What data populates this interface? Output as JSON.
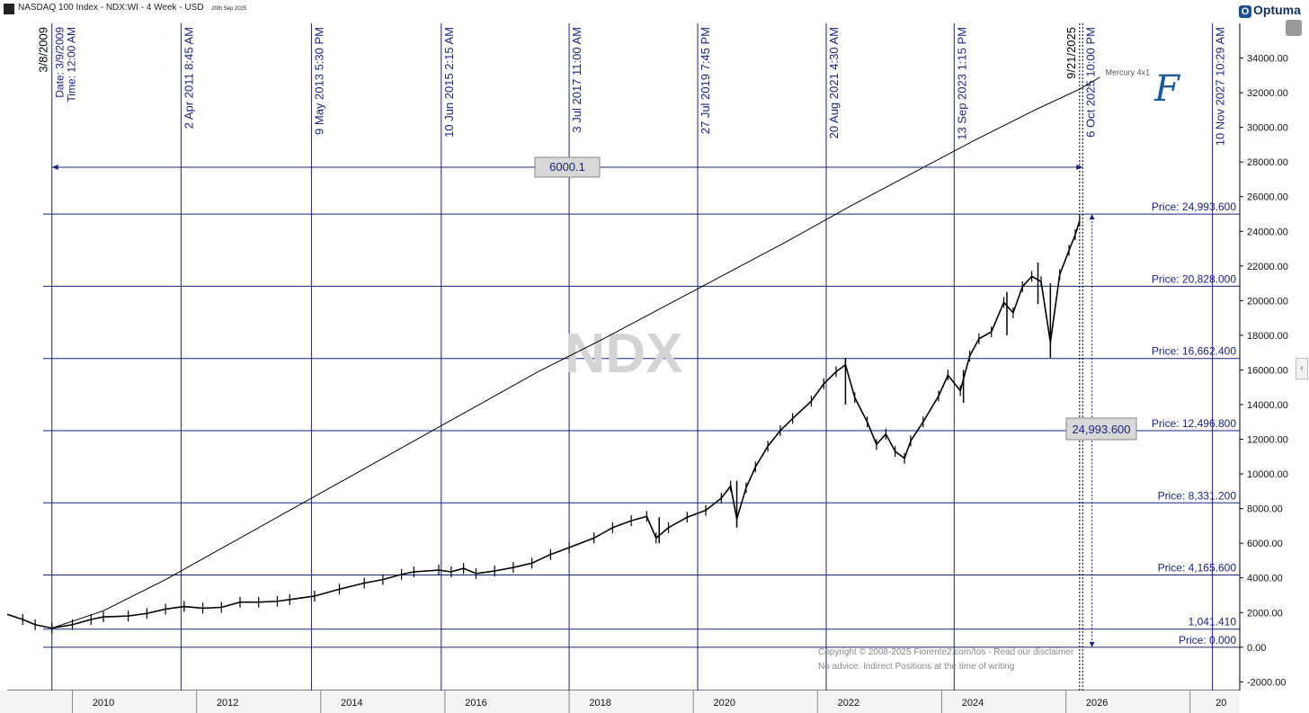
{
  "header": {
    "title": "NASDAQ 100 Index - NDX:WI - 4 Week - USD",
    "date": "20th Sep 2025"
  },
  "logo": {
    "text": "Optuma",
    "mark": "O"
  },
  "footer": {
    "line1": "Copyright © 2008-2025 Fiorente2.com/tos - Read our disclaimer",
    "line2": "No advice. Indirect Positions at the time of writing"
  },
  "chart_data": {
    "type": "line",
    "watermark": "NDX",
    "signature": "F",
    "x_ticks": [
      "2010",
      "2012",
      "2014",
      "2016",
      "2018",
      "2020",
      "2022",
      "2024",
      "2026",
      "20"
    ],
    "xlim": [
      2008.45,
      2028.3
    ],
    "ylim": [
      -2500,
      36000
    ],
    "y_ticks": [
      -2000,
      0,
      2000,
      4000,
      6000,
      8000,
      10000,
      12000,
      14000,
      16000,
      18000,
      20000,
      22000,
      24000,
      26000,
      28000,
      30000,
      32000,
      34000
    ],
    "y_tick_labels": [
      "-2000.00",
      "0.00",
      "2000.00",
      "4000.00",
      "6000.00",
      "8000.00",
      "10000.00",
      "12000.00",
      "14000.00",
      "16000.00",
      "18000.00",
      "20000.00",
      "22000.00",
      "24000.00",
      "26000.00",
      "28000.00",
      "30000.00",
      "32000.00",
      "34000.00"
    ],
    "time_lines": [
      {
        "x": 2009.17,
        "label": "3/8/2009"
      },
      {
        "x": 2011.25,
        "label": "2 Apr 2011 8:45 AM"
      },
      {
        "x": 2013.35,
        "label": "9 May 2013 5:30 PM"
      },
      {
        "x": 2015.44,
        "label": "10 Jun 2015 2:15 AM"
      },
      {
        "x": 2017.5,
        "label": "3 Jul 2017 11:00 AM"
      },
      {
        "x": 2019.57,
        "label": "27 Jul 2019 7:45 PM"
      },
      {
        "x": 2021.64,
        "label": "20 Aug 2021 4:30 AM"
      },
      {
        "x": 2023.7,
        "label": "13 Sep 2023 1:15 PM"
      },
      {
        "x": 2025.72,
        "label": "9/21/2025"
      },
      {
        "x": 2025.77,
        "label": "6 Oct 2025 10:00 PM"
      },
      {
        "x": 2027.86,
        "label": "10 Nov 2027 10:29 AM"
      }
    ],
    "start_labels": [
      "Date: 3/9/2009",
      "Time: 12:00 AM"
    ],
    "price_levels": [
      {
        "y": 24993.6,
        "label": "Price: 24,993.600"
      },
      {
        "y": 20828.0,
        "label": "Price: 20,828.000"
      },
      {
        "y": 16662.4,
        "label": "Price: 16,662.400"
      },
      {
        "y": 12496.8,
        "label": "Price: 12,496.800"
      },
      {
        "y": 8331.2,
        "label": "Price: 8,331.200"
      },
      {
        "y": 4165.6,
        "label": "Price: 4,165.600"
      },
      {
        "y": 1041.41,
        "label": "1,041.410"
      },
      {
        "y": 0,
        "label": "Price: 0.000"
      }
    ],
    "span_label": "6000.1",
    "span_y": 27700,
    "range_label": "24,993.600",
    "range_label_y": 12600,
    "mercury_label": "Mercury 4x1",
    "mercury_line": [
      [
        2009.17,
        1100
      ],
      [
        2010,
        2100
      ],
      [
        2011,
        3900
      ],
      [
        2012,
        5900
      ],
      [
        2013,
        7900
      ],
      [
        2014,
        9900
      ],
      [
        2015,
        11900
      ],
      [
        2016,
        13900
      ],
      [
        2017,
        15900
      ],
      [
        2018,
        17700
      ],
      [
        2019,
        19600
      ],
      [
        2020,
        21500
      ],
      [
        2021,
        23400
      ],
      [
        2022,
        25400
      ],
      [
        2023,
        27300
      ],
      [
        2024,
        29200
      ],
      [
        2025,
        31000
      ],
      [
        2025.72,
        32200
      ],
      [
        2026.05,
        32900
      ]
    ],
    "price_line": [
      [
        2008.45,
        1900
      ],
      [
        2008.7,
        1600
      ],
      [
        2008.9,
        1300
      ],
      [
        2009.17,
        1100
      ],
      [
        2009.5,
        1300
      ],
      [
        2009.8,
        1600
      ],
      [
        2010,
        1750
      ],
      [
        2010.4,
        1800
      ],
      [
        2010.7,
        1950
      ],
      [
        2011,
        2200
      ],
      [
        2011.3,
        2350
      ],
      [
        2011.6,
        2250
      ],
      [
        2011.9,
        2300
      ],
      [
        2012.2,
        2600
      ],
      [
        2012.5,
        2600
      ],
      [
        2012.8,
        2650
      ],
      [
        2013,
        2750
      ],
      [
        2013.4,
        2950
      ],
      [
        2013.8,
        3350
      ],
      [
        2014.2,
        3700
      ],
      [
        2014.5,
        3900
      ],
      [
        2014.8,
        4200
      ],
      [
        2015,
        4350
      ],
      [
        2015.4,
        4450
      ],
      [
        2015.6,
        4350
      ],
      [
        2015.8,
        4550
      ],
      [
        2016,
        4250
      ],
      [
        2016.3,
        4400
      ],
      [
        2016.6,
        4600
      ],
      [
        2016.9,
        4850
      ],
      [
        2017.2,
        5350
      ],
      [
        2017.5,
        5750
      ],
      [
        2017.9,
        6300
      ],
      [
        2018.2,
        6900
      ],
      [
        2018.5,
        7300
      ],
      [
        2018.75,
        7550
      ],
      [
        2018.9,
        6300
      ],
      [
        2019.1,
        6900
      ],
      [
        2019.4,
        7500
      ],
      [
        2019.7,
        7900
      ],
      [
        2019.95,
        8600
      ],
      [
        2020.1,
        9300
      ],
      [
        2020.2,
        7400
      ],
      [
        2020.35,
        9200
      ],
      [
        2020.5,
        10400
      ],
      [
        2020.7,
        11600
      ],
      [
        2020.9,
        12500
      ],
      [
        2021.1,
        13200
      ],
      [
        2021.4,
        14200
      ],
      [
        2021.6,
        15200
      ],
      [
        2021.8,
        15900
      ],
      [
        2021.95,
        16300
      ],
      [
        2022.1,
        14400
      ],
      [
        2022.3,
        13000
      ],
      [
        2022.45,
        11700
      ],
      [
        2022.6,
        12300
      ],
      [
        2022.75,
        11300
      ],
      [
        2022.9,
        10900
      ],
      [
        2023.0,
        11900
      ],
      [
        2023.2,
        13000
      ],
      [
        2023.45,
        14500
      ],
      [
        2023.6,
        15700
      ],
      [
        2023.8,
        14800
      ],
      [
        2023.95,
        16800
      ],
      [
        2024.1,
        17800
      ],
      [
        2024.3,
        18200
      ],
      [
        2024.5,
        19900
      ],
      [
        2024.65,
        19300
      ],
      [
        2024.8,
        20800
      ],
      [
        2024.95,
        21400
      ],
      [
        2025.1,
        21100
      ],
      [
        2025.25,
        17600
      ],
      [
        2025.4,
        21500
      ],
      [
        2025.55,
        22900
      ],
      [
        2025.65,
        23800
      ],
      [
        2025.72,
        24600
      ]
    ],
    "price_bars": [
      [
        2018.95,
        7500,
        6000
      ],
      [
        2020.2,
        9600,
        6900
      ],
      [
        2021.95,
        16700,
        14000
      ],
      [
        2023.85,
        16000,
        14100
      ],
      [
        2025.25,
        21000,
        16700
      ],
      [
        2025.05,
        22200,
        19800
      ],
      [
        2024.55,
        20500,
        18000
      ]
    ]
  }
}
